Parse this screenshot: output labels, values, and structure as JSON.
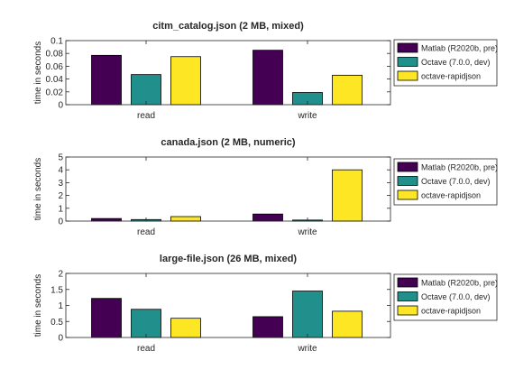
{
  "series_colors": [
    "#440154",
    "#21908c",
    "#fde725"
  ],
  "chart_data": [
    {
      "type": "bar",
      "title": "citm_catalog.json (2 MB, mixed)",
      "ylabel": "time in seconds",
      "xlabel": "",
      "categories": [
        "read",
        "write"
      ],
      "ylim": [
        0,
        0.1
      ],
      "yticks": [
        "0",
        "0.02",
        "0.04",
        "0.06",
        "0.08",
        "0.1"
      ],
      "ytick_values": [
        0,
        0.02,
        0.04,
        0.06,
        0.08,
        0.1
      ],
      "grid": false,
      "legend_position": "outside-right",
      "series": [
        {
          "name": "Matlab (R2020b, pre)",
          "values": [
            0.077,
            0.085
          ]
        },
        {
          "name": "Octave (7.0.0, dev)",
          "values": [
            0.047,
            0.019
          ]
        },
        {
          "name": "octave-rapidjson",
          "values": [
            0.075,
            0.046
          ]
        }
      ]
    },
    {
      "type": "bar",
      "title": "canada.json (2 MB, numeric)",
      "ylabel": "time in seconds",
      "xlabel": "",
      "categories": [
        "read",
        "write"
      ],
      "ylim": [
        0,
        5
      ],
      "yticks": [
        "0",
        "1",
        "2",
        "3",
        "4",
        "5"
      ],
      "ytick_values": [
        0,
        1,
        2,
        3,
        4,
        5
      ],
      "grid": false,
      "legend_position": "outside-right",
      "series": [
        {
          "name": "Matlab (R2020b, pre)",
          "values": [
            0.2,
            0.55
          ]
        },
        {
          "name": "Octave (7.0.0, dev)",
          "values": [
            0.12,
            0.08
          ]
        },
        {
          "name": "octave-rapidjson",
          "values": [
            0.35,
            4.0
          ]
        }
      ]
    },
    {
      "type": "bar",
      "title": "large-file.json (26 MB, mixed)",
      "ylabel": "time in seconds",
      "xlabel": "",
      "categories": [
        "read",
        "write"
      ],
      "ylim": [
        0,
        2
      ],
      "yticks": [
        "0",
        "0.5",
        "1",
        "1.5",
        "2"
      ],
      "ytick_values": [
        0,
        0.5,
        1,
        1.5,
        2
      ],
      "grid": false,
      "legend_position": "outside-right",
      "series": [
        {
          "name": "Matlab (R2020b, pre)",
          "values": [
            1.22,
            0.65
          ]
        },
        {
          "name": "Octave (7.0.0, dev)",
          "values": [
            0.88,
            1.45
          ]
        },
        {
          "name": "octave-rapidjson",
          "values": [
            0.6,
            0.82
          ]
        }
      ]
    }
  ]
}
